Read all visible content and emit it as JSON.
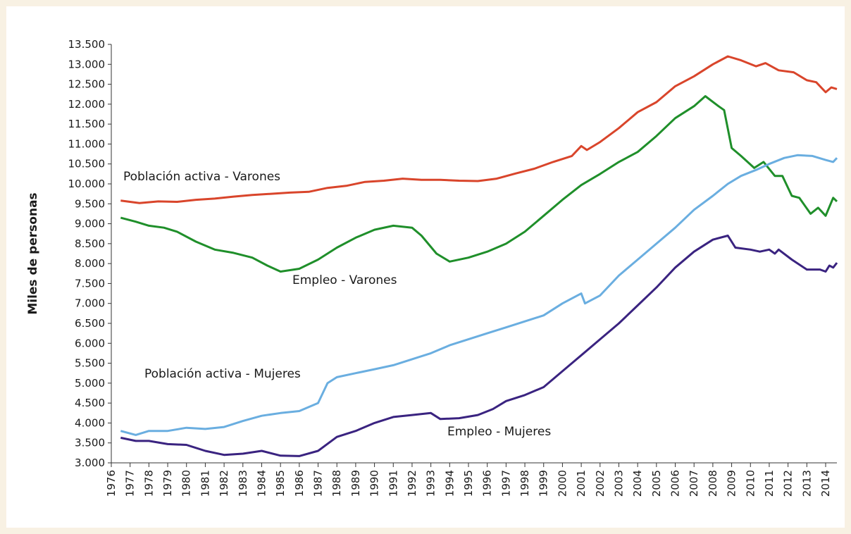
{
  "chart_data": {
    "type": "line",
    "ylabel": "Miles de personas",
    "xlim": [
      1976,
      2014.6
    ],
    "xticks": [
      1976,
      1977,
      1978,
      1979,
      1980,
      1981,
      1982,
      1983,
      1984,
      1985,
      1986,
      1987,
      1988,
      1989,
      1990,
      1991,
      1992,
      1993,
      1994,
      1995,
      1996,
      1997,
      1998,
      1999,
      2000,
      2001,
      2002,
      2003,
      2004,
      2005,
      2006,
      2007,
      2008,
      2009,
      2010,
      2011,
      2012,
      2013,
      2014
    ],
    "ylim": [
      3000,
      13500
    ],
    "yticks": [
      {
        "value": 3000,
        "label": "3.000"
      },
      {
        "value": 3500,
        "label": "3.500"
      },
      {
        "value": 4000,
        "label": "4.000"
      },
      {
        "value": 4500,
        "label": "4.500"
      },
      {
        "value": 5000,
        "label": "5.000"
      },
      {
        "value": 5500,
        "label": "5.500"
      },
      {
        "value": 6000,
        "label": "6.000"
      },
      {
        "value": 6500,
        "label": "6.500"
      },
      {
        "value": 7000,
        "label": "7.000"
      },
      {
        "value": 7500,
        "label": "7.500"
      },
      {
        "value": 8000,
        "label": "8.000"
      },
      {
        "value": 8500,
        "label": "8.500"
      },
      {
        "value": 9000,
        "label": "9.000"
      },
      {
        "value": 9500,
        "label": "9.500"
      },
      {
        "value": 10000,
        "label": "10.000"
      },
      {
        "value": 10500,
        "label": "10.500"
      },
      {
        "value": 11000,
        "label": "11.000"
      },
      {
        "value": 11500,
        "label": "11.500"
      },
      {
        "value": 12000,
        "label": "12.000"
      },
      {
        "value": 12500,
        "label": "12.500"
      },
      {
        "value": 13000,
        "label": "13.000"
      },
      {
        "value": 13500,
        "label": "13.500"
      }
    ],
    "series": [
      {
        "name": "Población activa - Varones",
        "color": "#d9452b",
        "x": [
          1976.5,
          1977.5,
          1978.5,
          1979.5,
          1980.5,
          1981.5,
          1982.5,
          1983.5,
          1984.5,
          1985.5,
          1986.5,
          1987.5,
          1988.5,
          1989.5,
          1990.5,
          1991.5,
          1992.5,
          1993.5,
          1994.5,
          1995.5,
          1996.5,
          1997.5,
          1998.5,
          1999.5,
          2000.5,
          2001,
          2001.3,
          2002,
          2003,
          2004,
          2005,
          2006,
          2007,
          2008,
          2008.8,
          2009.5,
          2010.3,
          2010.8,
          2011.5,
          2012.3,
          2013,
          2013.5,
          2014,
          2014.3,
          2014.6
        ],
        "values": [
          9580,
          9520,
          9560,
          9550,
          9600,
          9630,
          9680,
          9720,
          9750,
          9780,
          9800,
          9900,
          9950,
          10050,
          10080,
          10130,
          10100,
          10100,
          10080,
          10070,
          10130,
          10260,
          10380,
          10550,
          10700,
          10950,
          10850,
          11050,
          11400,
          11800,
          12050,
          12450,
          12700,
          13000,
          13200,
          13100,
          12950,
          13030,
          12850,
          12800,
          12600,
          12550,
          12300,
          12420,
          12380
        ]
      },
      {
        "name": "Empleo - Varones",
        "color": "#1f8f2a",
        "x": [
          1976.5,
          1977.3,
          1978,
          1978.8,
          1979.5,
          1980.5,
          1981.5,
          1982.5,
          1983.5,
          1984.3,
          1985,
          1986,
          1987,
          1988,
          1989,
          1990,
          1991,
          1992,
          1992.5,
          1993.3,
          1994,
          1995,
          1996,
          1997,
          1998,
          1999,
          2000,
          2001,
          2002,
          2003,
          2004,
          2005,
          2006,
          2007,
          2007.6,
          2008.3,
          2008.6,
          2009,
          2009.5,
          2010.2,
          2010.7,
          2011.3,
          2011.7,
          2012.2,
          2012.6,
          2013.2,
          2013.6,
          2014,
          2014.4,
          2014.6
        ],
        "values": [
          9150,
          9050,
          8950,
          8900,
          8800,
          8550,
          8350,
          8270,
          8150,
          7950,
          7800,
          7870,
          8100,
          8400,
          8650,
          8850,
          8950,
          8900,
          8700,
          8250,
          8050,
          8150,
          8300,
          8500,
          8800,
          9200,
          9600,
          9970,
          10250,
          10550,
          10800,
          11200,
          11650,
          11950,
          12200,
          11950,
          11850,
          10900,
          10700,
          10400,
          10550,
          10200,
          10200,
          9700,
          9650,
          9250,
          9400,
          9200,
          9650,
          9560
        ]
      },
      {
        "name": "Población activa - Mujeres",
        "color": "#6aaee0",
        "x": [
          1976.5,
          1977.3,
          1978,
          1979,
          1980,
          1981,
          1982,
          1983,
          1984,
          1985,
          1986,
          1987,
          1987.5,
          1988,
          1989,
          1990,
          1991,
          1992,
          1993,
          1994,
          1995,
          1996,
          1997,
          1998,
          1999,
          2000,
          2001,
          2001.2,
          2002,
          2003,
          2004,
          2005,
          2006,
          2007,
          2008,
          2008.8,
          2009.5,
          2010.3,
          2011,
          2011.8,
          2012.5,
          2013.3,
          2014,
          2014.4,
          2014.6
        ],
        "values": [
          3800,
          3700,
          3800,
          3800,
          3880,
          3850,
          3900,
          4050,
          4180,
          4250,
          4300,
          4500,
          5000,
          5150,
          5250,
          5350,
          5450,
          5600,
          5750,
          5950,
          6100,
          6250,
          6400,
          6550,
          6700,
          7000,
          7250,
          7000,
          7200,
          7700,
          8100,
          8500,
          8900,
          9350,
          9700,
          10000,
          10200,
          10350,
          10500,
          10650,
          10720,
          10700,
          10600,
          10550,
          10650
        ]
      },
      {
        "name": "Empleo - Mujeres",
        "color": "#3a2380",
        "x": [
          1976.5,
          1977.3,
          1978,
          1979,
          1980,
          1981,
          1982,
          1983,
          1984,
          1985,
          1986,
          1987,
          1988,
          1989,
          1990,
          1991,
          1992,
          1993,
          1993.5,
          1994.5,
          1995.5,
          1996.3,
          1997,
          1998,
          1999,
          2000,
          2001,
          2002,
          2003,
          2004,
          2005,
          2006,
          2007,
          2008,
          2008.8,
          2009.2,
          2010,
          2010.5,
          2011,
          2011.3,
          2011.5,
          2012.2,
          2013,
          2013.7,
          2014,
          2014.2,
          2014.4,
          2014.6
        ],
        "values": [
          3630,
          3550,
          3550,
          3470,
          3450,
          3300,
          3200,
          3230,
          3300,
          3180,
          3170,
          3300,
          3650,
          3800,
          4000,
          4150,
          4200,
          4250,
          4100,
          4120,
          4200,
          4350,
          4550,
          4700,
          4900,
          5300,
          5700,
          6100,
          6500,
          6950,
          7400,
          7900,
          8300,
          8600,
          8700,
          8400,
          8350,
          8300,
          8350,
          8250,
          8350,
          8100,
          7850,
          7850,
          7800,
          7950,
          7900,
          8020
        ]
      }
    ]
  }
}
